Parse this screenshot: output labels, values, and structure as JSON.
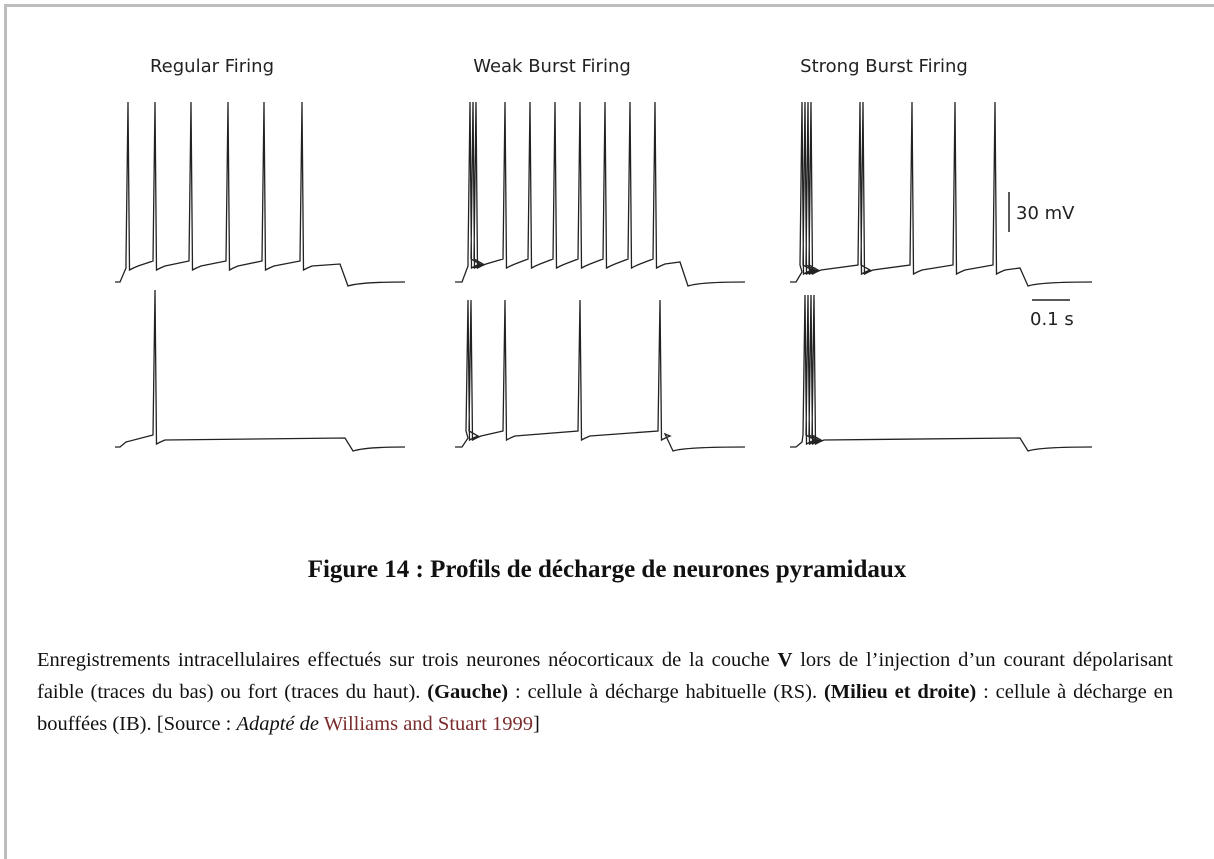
{
  "figure": {
    "panels": [
      "Regular Firing",
      "Weak Burst Firing",
      "Strong Burst Firing"
    ],
    "scale_voltage": "30 mV",
    "scale_time": "0.1 s"
  },
  "caption": "Figure 14 : Profils de décharge de neurones pyramidaux",
  "paragraph": [
    {
      "text": "Enregistrements intracellulaires effectués sur trois neurones néocorticaux de la couche ",
      "style": "normal"
    },
    {
      "text": "V",
      "style": "bold"
    },
    {
      "text": " lors de l’injection d’un courant dépolarisant faible (traces du bas) ou fort (traces du haut). ",
      "style": "normal"
    },
    {
      "text": "(Gauche)",
      "style": "bold"
    },
    {
      "text": " : cellule à décharge habituelle (RS). ",
      "style": "normal"
    },
    {
      "text": "(Milieu et droite)",
      "style": "bold"
    },
    {
      "text": " : cellule à décharge en bouffées (IB). [Source : ",
      "style": "normal"
    },
    {
      "text": "Adapté de",
      "style": "italic"
    },
    {
      "text": " ",
      "style": "normal"
    },
    {
      "text": "Williams and Stuart 1999",
      "style": "link"
    },
    {
      "text": "]",
      "style": "normal"
    }
  ]
}
